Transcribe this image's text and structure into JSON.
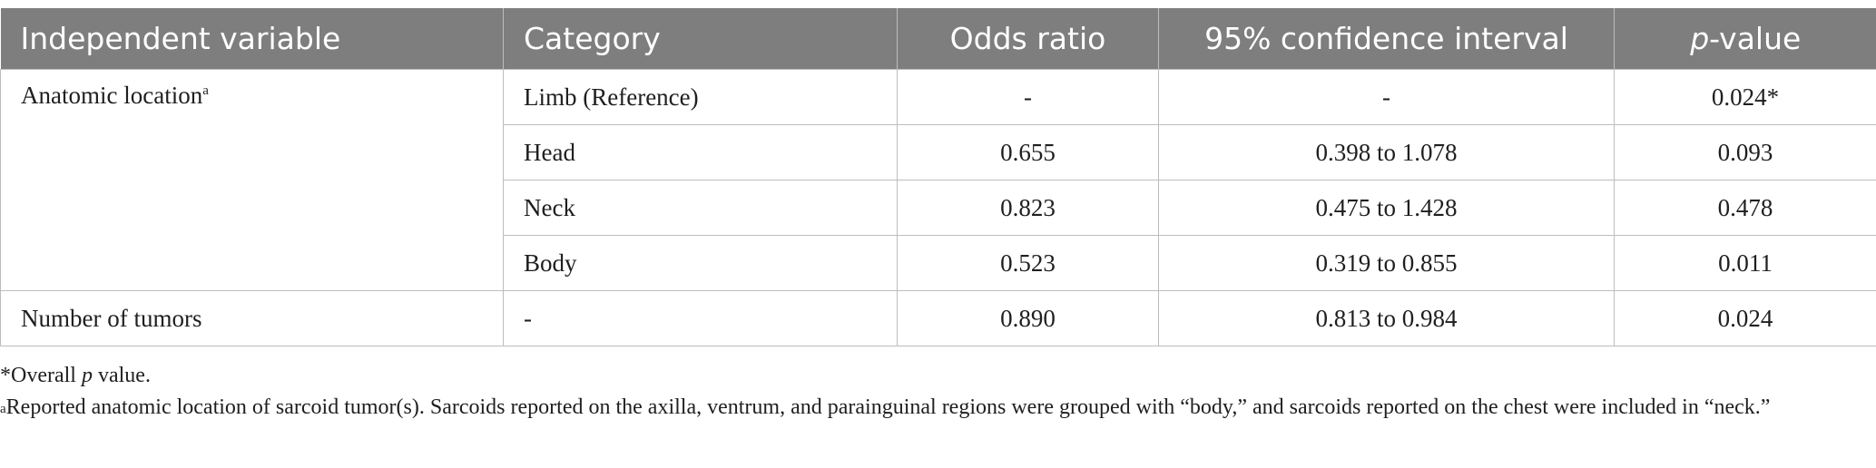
{
  "table": {
    "headers": {
      "col1": "Independent variable",
      "col2": "Category",
      "col3": "Odds ratio",
      "col4": "95% confidence interval",
      "col5_italic": "p",
      "col5_rest": "-value"
    },
    "rows": [
      {
        "variable": "Anatomic location",
        "variable_sup": "a",
        "category": "Limb (Reference)",
        "odds": "-",
        "ci": "-",
        "p": "0.024*"
      },
      {
        "category": "Head",
        "odds": "0.655",
        "ci": "0.398 to 1.078",
        "p": "0.093"
      },
      {
        "category": "Neck",
        "odds": "0.823",
        "ci": "0.475 to 1.428",
        "p": "0.478"
      },
      {
        "category": "Body",
        "odds": "0.523",
        "ci": "0.319 to 0.855",
        "p": "0.011"
      },
      {
        "variable": "Number of tumors",
        "category": "-",
        "odds": "0.890",
        "ci": "0.813 to 0.984",
        "p": "0.024"
      }
    ]
  },
  "footnotes": {
    "f1_pre": "*Overall ",
    "f1_italic": "p",
    "f1_post": " value.",
    "f2_sup": "a",
    "f2_text": "Reported anatomic location of sarcoid tumor(s). Sarcoids reported on the axilla, ventrum, and parainguinal regions were grouped with “body,” and sarcoids reported on the chest were included in “neck.”"
  }
}
